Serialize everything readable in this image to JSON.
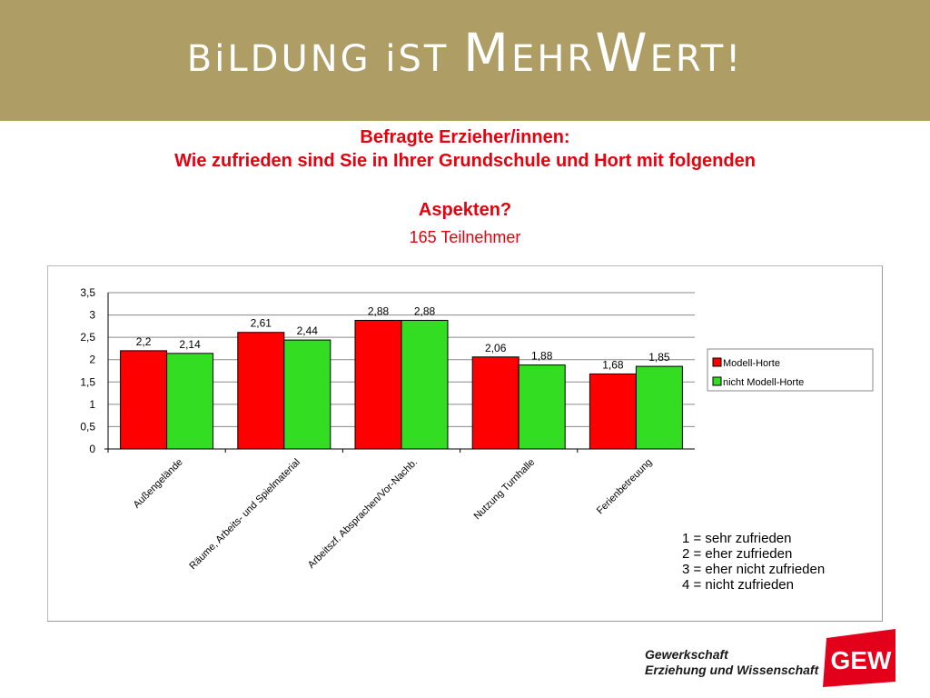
{
  "header": {
    "banner_part1": "BiLDUNG iST ",
    "banner_big1": "M",
    "banner_part2": "EHR",
    "banner_big2": "W",
    "banner_part3": "ERT!"
  },
  "titles": {
    "line1": "Befragte Erzieher/innen:",
    "line2": "Wie zufrieden sind Sie in Ihrer Grundschule und Hort mit folgenden",
    "line3": "Aspekten?",
    "participants": "165 Teilnehmer"
  },
  "chart_data": {
    "type": "bar",
    "categories": [
      "Außengelände",
      "Räume, Arbeits- und Spielmaterial",
      "Arbeitszf. Absprachen/Vor-Nachb.",
      "Nutzung Turnhalle",
      "Ferienbetreuung"
    ],
    "series": [
      {
        "name": "Modell-Horte",
        "color": "#ff0000",
        "values": [
          2.2,
          2.61,
          2.88,
          2.06,
          1.68
        ],
        "labels": [
          "2,2",
          "2,61",
          "2,88",
          "2,06",
          "1,68"
        ]
      },
      {
        "name": "nicht Modell-Horte",
        "color": "#33dd22",
        "values": [
          2.14,
          2.44,
          2.88,
          1.88,
          1.85
        ],
        "labels": [
          "2,14",
          "2,44",
          "2,88",
          "1,88",
          "1,85"
        ]
      }
    ],
    "ylim": [
      0,
      3.5
    ],
    "yticks": [
      "0",
      "0,5",
      "1",
      "1,5",
      "2",
      "2,5",
      "3",
      "3,5"
    ],
    "grid": true,
    "legend_position": "right"
  },
  "scale_legend": [
    "1 = sehr zufrieden",
    "2 = eher zufrieden",
    "3 = eher nicht zufrieden",
    "4 = nicht zufrieden"
  ],
  "footer": {
    "org_line1": "Gewerkschaft",
    "org_line2": "Erziehung und Wissenschaft",
    "logo_text": "GEW",
    "logo_color": "#e2001a"
  }
}
